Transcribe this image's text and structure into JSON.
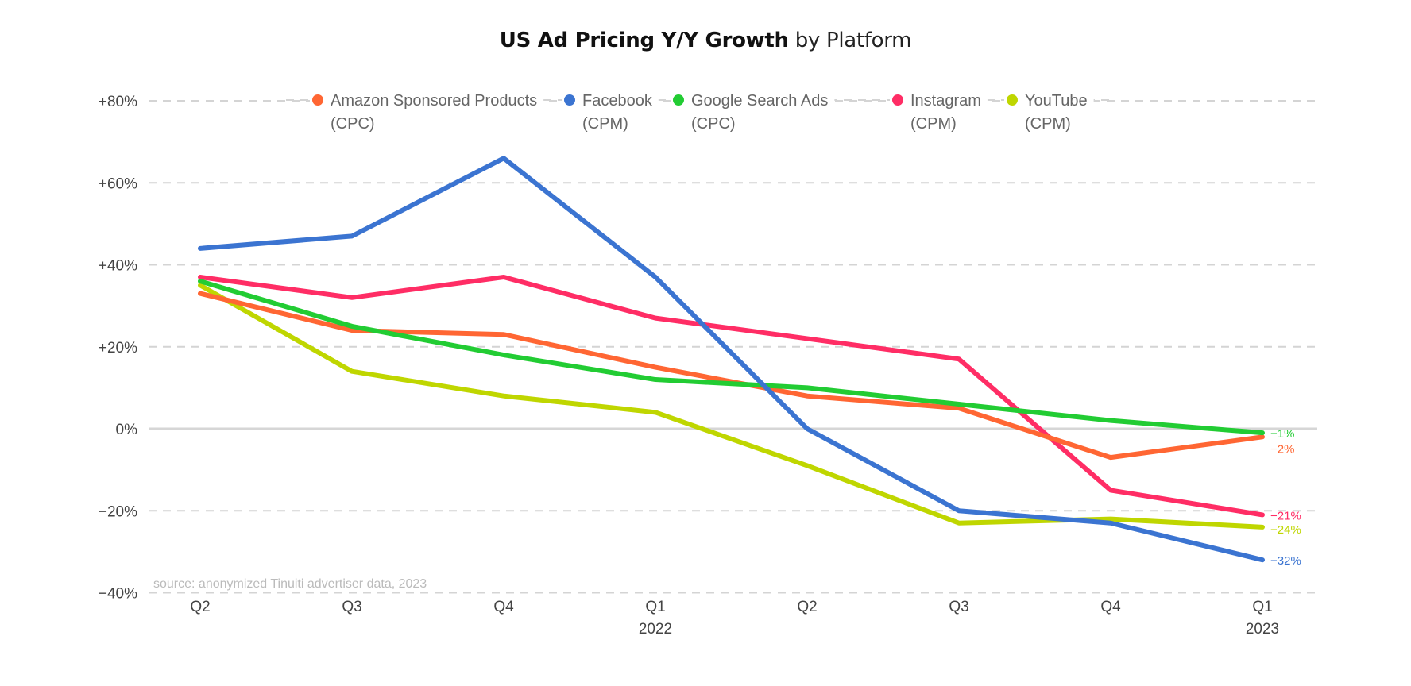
{
  "chart_data": {
    "type": "line",
    "title": "US Ad Pricing Y/Y Growth",
    "title_suffix": "by Platform",
    "categories": [
      "Q2",
      "Q3",
      "Q4",
      "Q1 2022",
      "Q2",
      "Q3",
      "Q4",
      "Q1 2023"
    ],
    "x_labels": [
      {
        "line1": "Q2",
        "line2": ""
      },
      {
        "line1": "Q3",
        "line2": ""
      },
      {
        "line1": "Q4",
        "line2": ""
      },
      {
        "line1": "Q1",
        "line2": "2022"
      },
      {
        "line1": "Q2",
        "line2": ""
      },
      {
        "line1": "Q3",
        "line2": ""
      },
      {
        "line1": "Q4",
        "line2": ""
      },
      {
        "line1": "Q1",
        "line2": "2023"
      }
    ],
    "ylim": [
      -40,
      80
    ],
    "yticks": [
      80,
      60,
      40,
      20,
      0,
      -20,
      -40
    ],
    "ytick_labels": [
      "+80%",
      "+60%",
      "+40%",
      "+20%",
      "0%",
      "−20%",
      "−40%"
    ],
    "xlabel": "",
    "ylabel": "",
    "grid": true,
    "legend_position": "top",
    "series": [
      {
        "name": "Amazon Sponsored Products",
        "metric": "(CPC)",
        "color": "#FF6633",
        "values": [
          33,
          24,
          23,
          15,
          8,
          5,
          -7,
          -2
        ],
        "end_label": "−2%"
      },
      {
        "name": "Facebook",
        "metric": "(CPM)",
        "color": "#3B74D1",
        "values": [
          44,
          47,
          66,
          37,
          0,
          -20,
          -23,
          -32
        ],
        "end_label": "−32%"
      },
      {
        "name": "Google Search Ads",
        "metric": "(CPC)",
        "color": "#22CC33",
        "values": [
          36,
          25,
          18,
          12,
          10,
          6,
          2,
          -1
        ],
        "end_label": "−1%"
      },
      {
        "name": "Instagram",
        "metric": "(CPM)",
        "color": "#FF2D65",
        "values": [
          37,
          32,
          37,
          27,
          22,
          17,
          -15,
          -21
        ],
        "end_label": "−21%"
      },
      {
        "name": "YouTube",
        "metric": "(CPM)",
        "color": "#BFD600",
        "values": [
          35,
          14,
          8,
          4,
          -9,
          -23,
          -22,
          -24
        ],
        "end_label": "−24%"
      }
    ],
    "source_note": "source: anonymized Tinuiti advertiser data, 2023"
  }
}
